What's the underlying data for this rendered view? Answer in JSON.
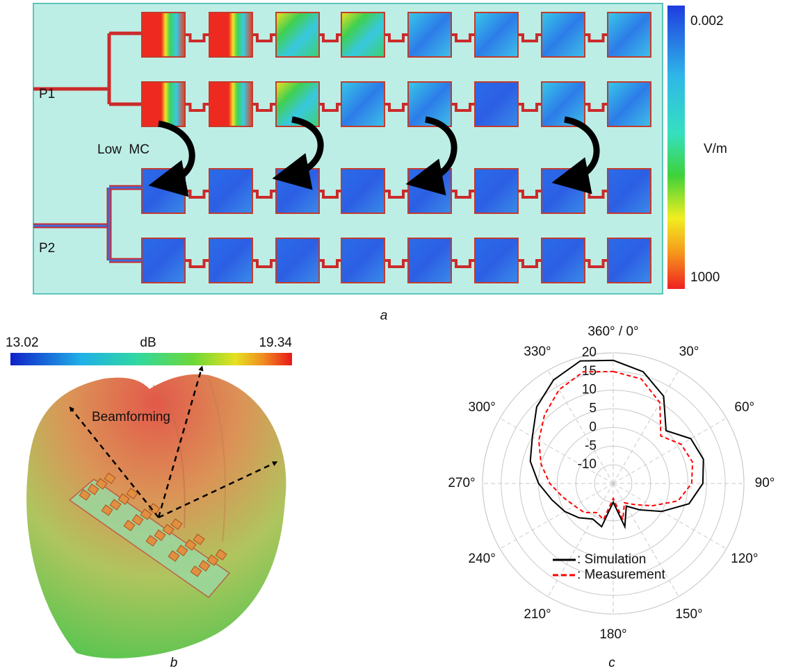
{
  "panel_a": {
    "port_1": "P1",
    "port_2": "P2",
    "annotation": "Low  MC",
    "colorbar_top": "0.002",
    "colorbar_unit": "V/m",
    "colorbar_bottom": "1000",
    "caption": "a"
  },
  "panel_b": {
    "colorbar_min": "13.02",
    "colorbar_unit": "dB",
    "colorbar_max": "19.34",
    "annotation": "Beamforming",
    "caption": "b"
  },
  "chart_data": {
    "type": "polar",
    "caption": "c",
    "xlim": [
      0,
      360
    ],
    "xticks": [
      {
        "value": 0,
        "label": "360° / 0°"
      },
      {
        "value": 30,
        "label": "30°"
      },
      {
        "value": 60,
        "label": "60°"
      },
      {
        "value": 90,
        "label": "90°"
      },
      {
        "value": 120,
        "label": "120°"
      },
      {
        "value": 150,
        "label": "150°"
      },
      {
        "value": 180,
        "label": "180°"
      },
      {
        "value": 210,
        "label": "210°"
      },
      {
        "value": 240,
        "label": "240°"
      },
      {
        "value": 270,
        "label": "270°"
      },
      {
        "value": 300,
        "label": "300°"
      },
      {
        "value": 330,
        "label": "330°"
      }
    ],
    "ylim": [
      -15,
      20
    ],
    "yticks": [
      20,
      15,
      10,
      5,
      0,
      -5,
      -10
    ],
    "grid": true,
    "series": [
      {
        "name": ": Simulation",
        "color": "#000000",
        "line_style": "solid",
        "x": [
          0,
          15,
          30,
          45,
          60,
          75,
          90,
          105,
          120,
          135,
          150,
          165,
          180,
          195,
          210,
          225,
          240,
          255,
          270,
          285,
          300,
          315,
          330,
          345
        ],
        "values": [
          18,
          16,
          12,
          5,
          9,
          10,
          9,
          6,
          0,
          -5,
          -8,
          -3,
          -10,
          -3,
          -4,
          -2,
          0,
          2,
          5,
          8,
          10,
          14,
          17,
          19
        ]
      },
      {
        "name": ": Measurement",
        "color": "#ff0000",
        "line_style": "dashed",
        "x": [
          0,
          15,
          30,
          45,
          60,
          75,
          90,
          105,
          120,
          135,
          150,
          165,
          180,
          195,
          210,
          225,
          240,
          255,
          270,
          285,
          300,
          315,
          330,
          345
        ],
        "values": [
          15,
          14,
          10,
          3,
          6,
          7,
          6,
          3,
          -3,
          -7,
          -9,
          -5,
          -11,
          -5,
          -6,
          -4,
          -3,
          -1,
          2,
          5,
          8,
          11,
          14,
          16
        ]
      }
    ]
  }
}
